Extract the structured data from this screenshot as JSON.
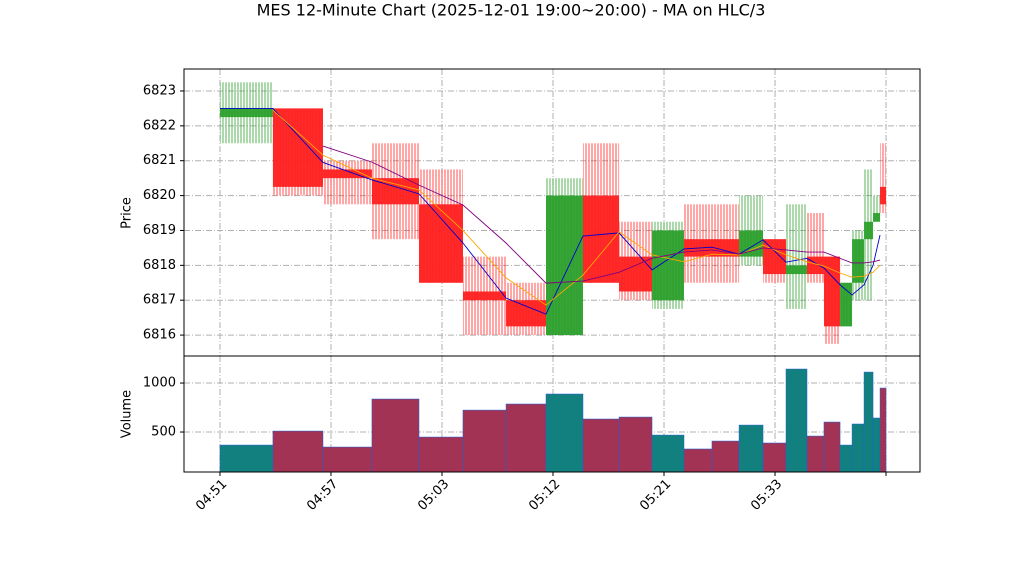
{
  "chart_data": [
    {
      "type": "candlestick",
      "title": "MES 12-Minute Chart (2025-12-01 19:00~20:00) - MA on HLC/3",
      "ylabel": "Price",
      "bounds": [
        0,
        0.477,
        0.928,
        1.369,
        1.793,
        2.189,
        2.577,
        2.937,
        3.27,
        3.595,
        3.892,
        4.18,
        4.432,
        4.676,
        4.892,
        5.099,
        5.288,
        5.441,
        5.586,
        5.694,
        5.802,
        5.883,
        5.946,
        6.0
      ],
      "open": [
        6822.25,
        6822.5,
        6820.75,
        6820.5,
        6819.75,
        6817.25,
        6817.0,
        6816.0,
        6820.0,
        6818.25,
        6817.0,
        6818.75,
        6818.75,
        6818.25,
        6818.75,
        6817.75,
        6818.25,
        6818.25,
        6816.25,
        6817.5,
        6818.75,
        6819.25,
        6820.25
      ],
      "high": [
        6823.25,
        6822.5,
        6821.0,
        6821.5,
        6820.75,
        6818.25,
        6817.5,
        6820.5,
        6821.5,
        6819.25,
        6819.25,
        6819.75,
        6819.75,
        6820.0,
        6818.75,
        6819.75,
        6819.5,
        6818.25,
        6817.5,
        6819.0,
        6820.75,
        6820.0,
        6821.5
      ],
      "low": [
        6821.5,
        6820.0,
        6819.75,
        6818.75,
        6817.5,
        6816.0,
        6816.0,
        6816.0,
        6817.5,
        6817.0,
        6816.75,
        6817.5,
        6817.5,
        6818.0,
        6817.5,
        6816.75,
        6817.5,
        6815.75,
        6816.25,
        6817.0,
        6817.0,
        6819.25,
        6819.5
      ],
      "close": [
        6822.5,
        6820.25,
        6820.5,
        6819.75,
        6817.5,
        6817.0,
        6816.25,
        6820.0,
        6817.5,
        6817.25,
        6819.0,
        6818.25,
        6818.25,
        6819.0,
        6817.75,
        6818.0,
        6817.75,
        6816.25,
        6817.5,
        6818.75,
        6819.25,
        6819.5,
        6819.75
      ],
      "up_color": "#2ca02c",
      "down_color": "#ff2020",
      "series": [
        {
          "color": "#0000cc",
          "values": [
            6822.5,
            6822.5,
            6820.95,
            6820.45,
            6820.05,
            6818.64,
            6817.06,
            6816.6,
            6818.84,
            6818.93,
            6817.87,
            6818.47,
            6818.52,
            6818.32,
            6818.73,
            6818.09,
            6818.2,
            6817.92,
            6817.44,
            6817.15,
            6817.44,
            6818.0,
            6818.87
          ]
        },
        {
          "color": "#ffa500",
          "values": [
            null,
            6822.45,
            6821.16,
            6820.5,
            6820.16,
            6819.0,
            6817.64,
            6816.86,
            6817.72,
            6818.96,
            6818.3,
            6818.1,
            6818.32,
            6818.3,
            6818.58,
            6818.3,
            6818.1,
            6817.98,
            6817.78,
            6817.66,
            6817.69,
            6817.8,
            6818.0
          ]
        },
        {
          "color": "#800080",
          "values": [
            null,
            null,
            6821.42,
            6820.96,
            6820.3,
            6819.73,
            6818.64,
            6817.49,
            6817.55,
            6817.8,
            6818.2,
            6818.38,
            6818.44,
            6818.32,
            6818.5,
            6818.44,
            6818.38,
            6818.38,
            6818.2,
            6818.07,
            6818.07,
            6818.1,
            6818.15
          ]
        }
      ],
      "xlim": [
        -0.324,
        6.306
      ],
      "xticks": [
        {
          "value": 0,
          "label": "04:51"
        },
        {
          "value": 1,
          "label": "04:57"
        },
        {
          "value": 2,
          "label": "05:03"
        },
        {
          "value": 3,
          "label": "05:12"
        },
        {
          "value": 4,
          "label": "05:21"
        },
        {
          "value": 5,
          "label": "05:33"
        },
        {
          "value": 6,
          "label": null
        }
      ],
      "ylim": [
        6815.4,
        6823.63
      ],
      "yticks": [
        6816,
        6817,
        6818,
        6819,
        6820,
        6821,
        6822,
        6823
      ],
      "grid": true
    },
    {
      "type": "bar",
      "ylabel": "Volume",
      "values": [
        367,
        510,
        347,
        837,
        449,
        724,
        786,
        888,
        633,
        653,
        469,
        327,
        408,
        571,
        388,
        1143,
        459,
        602,
        367,
        582,
        1112,
        643,
        949
      ],
      "up_color": "#138080",
      "down_color": "#a33355",
      "edge_color": "#1f5fd0",
      "ylim": [
        92,
        1276
      ],
      "yticks": [
        500,
        1000
      ],
      "grid": true
    }
  ]
}
